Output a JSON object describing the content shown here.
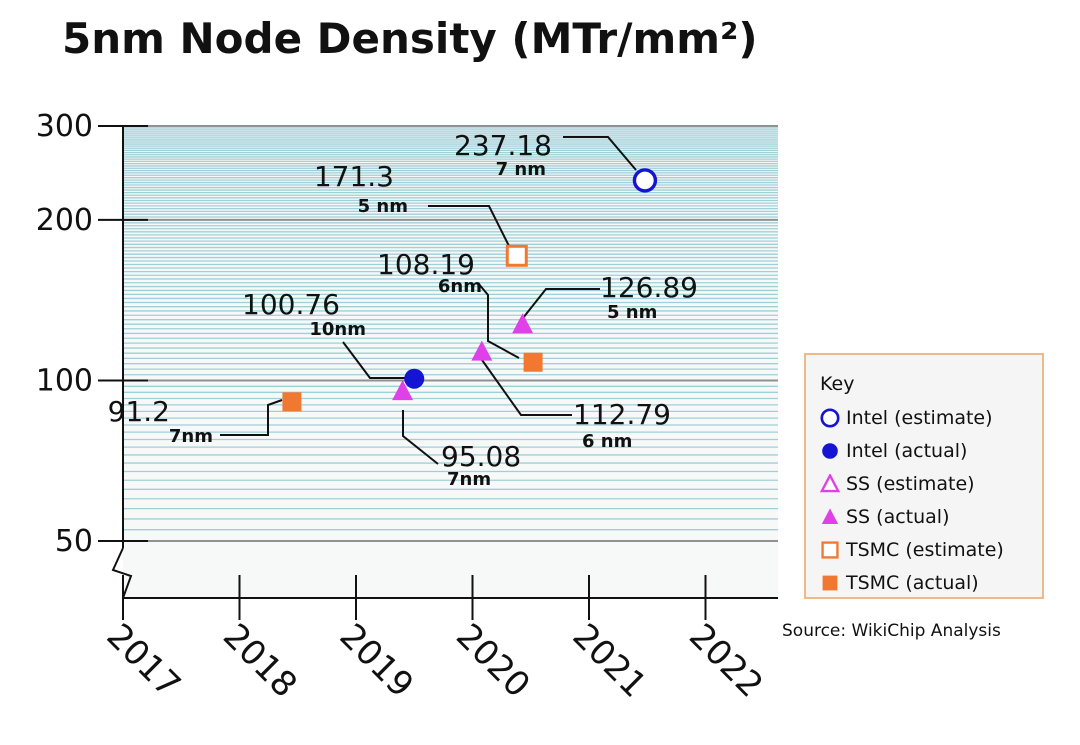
{
  "title": "5nm Node Density (MTr/mm²)",
  "source": "Source: WikiChip Analysis",
  "colors": {
    "intel": "#1414d2",
    "ss": "#e040e8",
    "tsmc": "#f07830",
    "grid_major": "#8f9292",
    "grid_minor": "#9fd0d8"
  },
  "legend": {
    "title": "Key",
    "items": [
      {
        "label": "Intel (estimate)",
        "shape": "circle",
        "filled": false,
        "color": "#1414d2"
      },
      {
        "label": "Intel (actual)",
        "shape": "circle",
        "filled": true,
        "color": "#1414d2"
      },
      {
        "label": "SS (estimate)",
        "shape": "triangle",
        "filled": false,
        "color": "#e040e8"
      },
      {
        "label": "SS (actual)",
        "shape": "triangle",
        "filled": true,
        "color": "#e040e8"
      },
      {
        "label": "TSMC (estimate)",
        "shape": "square",
        "filled": false,
        "color": "#f07830"
      },
      {
        "label": "TSMC (actual)",
        "shape": "square",
        "filled": true,
        "color": "#f07830"
      }
    ]
  },
  "chart_data": {
    "type": "scatter",
    "title": "5nm Node Density (MTr/mm²)",
    "xlabel": "",
    "ylabel": "",
    "y_scale": "log",
    "xlim": [
      2017,
      2022.65
    ],
    "ylim": [
      50,
      300
    ],
    "x_ticks": [
      "2017",
      "2018",
      "2019",
      "2020",
      "2021",
      "2022"
    ],
    "y_ticks": [
      "50",
      "100",
      "200",
      "300"
    ],
    "axis_break": true,
    "legend_position": "right",
    "points": [
      {
        "series": "TSMC (actual)",
        "x": 2018.45,
        "y": 91.2,
        "value_label": "91.2",
        "node_label": "7nm",
        "shape": "square",
        "filled": true,
        "color": "#f07830"
      },
      {
        "series": "SS (actual)",
        "x": 2019.4,
        "y": 95.08,
        "value_label": "95.08",
        "node_label": "7nm",
        "shape": "triangle",
        "filled": true,
        "color": "#e040e8"
      },
      {
        "series": "Intel (actual)",
        "x": 2019.5,
        "y": 100.76,
        "value_label": "100.76",
        "node_label": "10nm",
        "shape": "circle",
        "filled": true,
        "color": "#1414d2"
      },
      {
        "series": "SS (actual)",
        "x": 2020.08,
        "y": 112.79,
        "value_label": "112.79",
        "node_label": "6 nm",
        "shape": "triangle",
        "filled": true,
        "color": "#e040e8"
      },
      {
        "series": "TSMC (actual)",
        "x": 2020.52,
        "y": 108.19,
        "value_label": "108.19",
        "node_label": "6nm",
        "shape": "square",
        "filled": true,
        "color": "#f07830"
      },
      {
        "series": "SS (actual)",
        "x": 2020.43,
        "y": 126.89,
        "value_label": "126.89",
        "node_label": "5 nm",
        "shape": "triangle",
        "filled": true,
        "color": "#e040e8"
      },
      {
        "series": "TSMC (estimate)",
        "x": 2020.38,
        "y": 171.3,
        "value_label": "171.3",
        "node_label": "5 nm",
        "shape": "square",
        "filled": false,
        "color": "#f07830"
      },
      {
        "series": "Intel (estimate)",
        "x": 2021.48,
        "y": 237.18,
        "value_label": "237.18",
        "node_label": "7 nm",
        "shape": "circle",
        "filled": false,
        "color": "#1414d2"
      }
    ]
  }
}
